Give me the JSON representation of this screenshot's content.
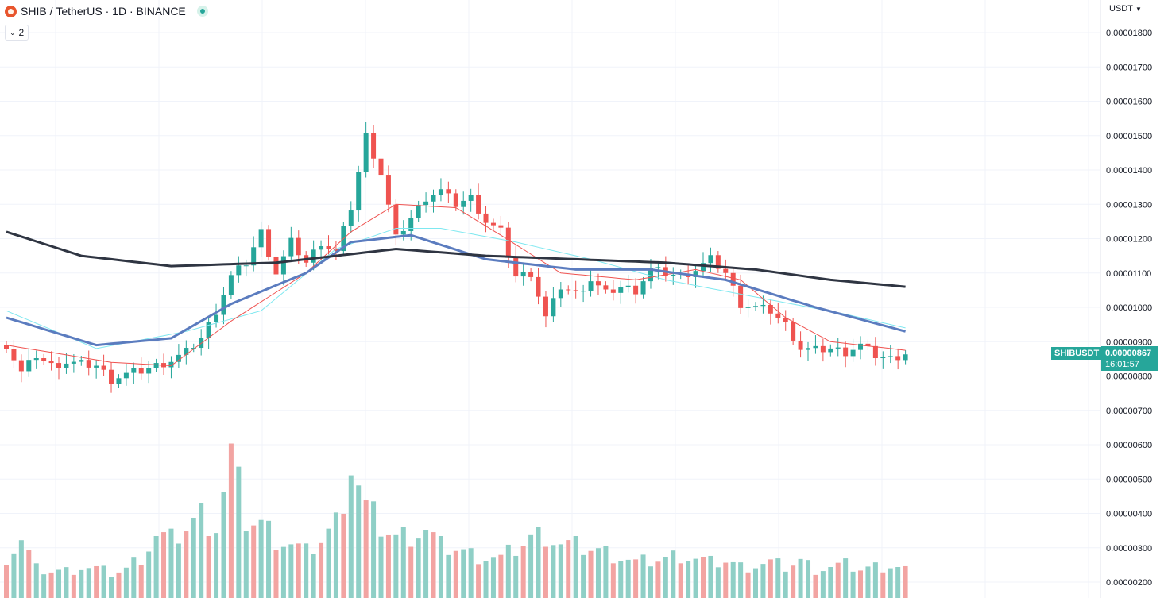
{
  "header": {
    "symbol": "SHIB",
    "separator": "/",
    "quote": "TetherUS",
    "dot1": "·",
    "interval": "1D",
    "dot2": "·",
    "exchange": "BINANCE"
  },
  "indicators_toggle": {
    "count": "2"
  },
  "currency_selector": {
    "label": "USDT"
  },
  "last_price": {
    "symbol": "SHIBUSDT",
    "value": "0.00000867",
    "countdown": "16:01:57"
  },
  "colors": {
    "up": "#26a69a",
    "down": "#ef5350",
    "up_volume": "#8fcfc6",
    "down_volume": "#f2a4a2",
    "ma_short": "#ef5350",
    "ma_mid": "#5b7cbf",
    "ma_fast_cyan": "#7ee8f0",
    "ma_long": "#2f3542",
    "grid": "#f0f3fa",
    "axis_text": "#131722"
  },
  "chart_data": {
    "type": "candlestick",
    "y_axis": {
      "ticks": [
        "0.00001800",
        "0.00001700",
        "0.00001600",
        "0.00001500",
        "0.00001400",
        "0.00001300",
        "0.00001200",
        "0.00001100",
        "0.00001000",
        "0.00000900",
        "0.00000800",
        "0.00000700",
        "0.00000600",
        "0.00000500",
        "0.00000400",
        "0.00000300",
        "0.00000200"
      ],
      "ylim": [
        1.6e-06,
        1.84e-05
      ]
    },
    "ohlc_close_points": [
      [
        0,
        8.9
      ],
      [
        2,
        8.1
      ],
      [
        4,
        8.6
      ],
      [
        6,
        8.3
      ],
      [
        8,
        8.4
      ],
      [
        10,
        8.35
      ],
      [
        12,
        8.3
      ],
      [
        14,
        7.9
      ],
      [
        16,
        8.05
      ],
      [
        18,
        8.15
      ],
      [
        20,
        8.3
      ],
      [
        22,
        8.45
      ],
      [
        24,
        8.7
      ],
      [
        26,
        9.1
      ],
      [
        28,
        9.9
      ],
      [
        30,
        10.9
      ],
      [
        32,
        11.3
      ],
      [
        34,
        12.2
      ],
      [
        36,
        11.0
      ],
      [
        38,
        11.9
      ],
      [
        40,
        11.3
      ],
      [
        42,
        11.9
      ],
      [
        44,
        11.6
      ],
      [
        46,
        12.9
      ],
      [
        48,
        15.0
      ],
      [
        50,
        13.9
      ],
      [
        52,
        12.0
      ],
      [
        54,
        12.6
      ],
      [
        56,
        13.2
      ],
      [
        58,
        13.4
      ],
      [
        60,
        13.0
      ],
      [
        62,
        13.2
      ],
      [
        64,
        12.5
      ],
      [
        66,
        12.2
      ],
      [
        68,
        10.9
      ],
      [
        70,
        11.0
      ],
      [
        72,
        9.7
      ],
      [
        74,
        10.6
      ],
      [
        76,
        10.4
      ],
      [
        78,
        10.8
      ],
      [
        80,
        10.4
      ],
      [
        82,
        10.6
      ],
      [
        84,
        10.5
      ],
      [
        86,
        11.1
      ],
      [
        88,
        11.0
      ],
      [
        90,
        10.9
      ],
      [
        92,
        11.1
      ],
      [
        94,
        11.4
      ],
      [
        96,
        11.0
      ],
      [
        98,
        10.1
      ],
      [
        100,
        10.0
      ],
      [
        102,
        9.9
      ],
      [
        104,
        9.5
      ],
      [
        106,
        8.8
      ],
      [
        108,
        8.75
      ],
      [
        110,
        8.8
      ],
      [
        112,
        8.7
      ],
      [
        114,
        8.9
      ],
      [
        116,
        8.6
      ],
      [
        118,
        8.5
      ],
      [
        120,
        8.67
      ]
    ],
    "ma_short_points": [
      [
        0,
        8.9
      ],
      [
        14,
        8.4
      ],
      [
        22,
        8.3
      ],
      [
        30,
        9.6
      ],
      [
        40,
        11.0
      ],
      [
        46,
        12.2
      ],
      [
        52,
        13.0
      ],
      [
        60,
        12.9
      ],
      [
        66,
        12.1
      ],
      [
        74,
        11.0
      ],
      [
        84,
        10.8
      ],
      [
        92,
        11.1
      ],
      [
        98,
        10.8
      ],
      [
        104,
        9.7
      ],
      [
        110,
        9.0
      ],
      [
        120,
        8.75
      ]
    ],
    "ma_mid_points": [
      [
        0,
        9.7
      ],
      [
        12,
        8.9
      ],
      [
        22,
        9.1
      ],
      [
        30,
        10.1
      ],
      [
        40,
        11.0
      ],
      [
        46,
        11.9
      ],
      [
        54,
        12.1
      ],
      [
        64,
        11.4
      ],
      [
        76,
        11.1
      ],
      [
        86,
        11.1
      ],
      [
        96,
        10.8
      ],
      [
        108,
        10.0
      ],
      [
        120,
        9.3
      ]
    ],
    "ma_cyan_points": [
      [
        0,
        9.9
      ],
      [
        12,
        8.8
      ],
      [
        24,
        9.3
      ],
      [
        34,
        9.9
      ],
      [
        44,
        11.7
      ],
      [
        52,
        12.3
      ],
      [
        58,
        12.3
      ],
      [
        68,
        11.9
      ],
      [
        78,
        11.4
      ],
      [
        88,
        10.8
      ],
      [
        100,
        10.3
      ],
      [
        112,
        9.8
      ],
      [
        120,
        9.4
      ]
    ],
    "ma_long_points": [
      [
        0,
        12.2
      ],
      [
        10,
        11.5
      ],
      [
        22,
        11.2
      ],
      [
        36,
        11.3
      ],
      [
        52,
        11.7
      ],
      [
        64,
        11.5
      ],
      [
        76,
        11.4
      ],
      [
        88,
        11.3
      ],
      [
        100,
        11.1
      ],
      [
        110,
        10.8
      ],
      [
        120,
        10.6
      ]
    ],
    "volume_note": "volume shown as histogram at bottom, relative units",
    "volume": [
      [
        0,
        2
      ],
      [
        2,
        2.8
      ],
      [
        4,
        1.4
      ],
      [
        6,
        1.3
      ],
      [
        8,
        1.3
      ],
      [
        10,
        1.5
      ],
      [
        12,
        1.4
      ],
      [
        14,
        1.2
      ],
      [
        16,
        1.4
      ],
      [
        18,
        2.0
      ],
      [
        20,
        3.0
      ],
      [
        22,
        2.8
      ],
      [
        24,
        3.4
      ],
      [
        26,
        4.0
      ],
      [
        28,
        3.5
      ],
      [
        30,
        6.8
      ],
      [
        32,
        3.8
      ],
      [
        34,
        3.6
      ],
      [
        36,
        2.9
      ],
      [
        38,
        2.6
      ],
      [
        40,
        2.2
      ],
      [
        42,
        2.8
      ],
      [
        44,
        3.6
      ],
      [
        46,
        6.6
      ],
      [
        48,
        4.3
      ],
      [
        50,
        3.5
      ],
      [
        52,
        2.9
      ],
      [
        54,
        3.1
      ],
      [
        56,
        3.3
      ],
      [
        58,
        2.5
      ],
      [
        60,
        2.4
      ],
      [
        62,
        2.1
      ],
      [
        64,
        2.0
      ],
      [
        66,
        1.9
      ],
      [
        68,
        2.4
      ],
      [
        70,
        2.9
      ],
      [
        72,
        3.1
      ],
      [
        74,
        2.6
      ],
      [
        76,
        2.5
      ],
      [
        78,
        2.4
      ],
      [
        80,
        2.2
      ],
      [
        82,
        2.0
      ],
      [
        84,
        1.7
      ],
      [
        86,
        1.8
      ],
      [
        88,
        1.9
      ],
      [
        90,
        2.1
      ],
      [
        92,
        1.9
      ],
      [
        94,
        1.7
      ],
      [
        96,
        1.8
      ],
      [
        98,
        1.5
      ],
      [
        100,
        1.6
      ],
      [
        102,
        1.7
      ],
      [
        104,
        1.5
      ],
      [
        106,
        1.8
      ],
      [
        108,
        1.4
      ],
      [
        110,
        1.5
      ],
      [
        112,
        1.6
      ],
      [
        114,
        1.4
      ],
      [
        116,
        1.5
      ],
      [
        118,
        1.6
      ],
      [
        120,
        1.4
      ]
    ]
  }
}
